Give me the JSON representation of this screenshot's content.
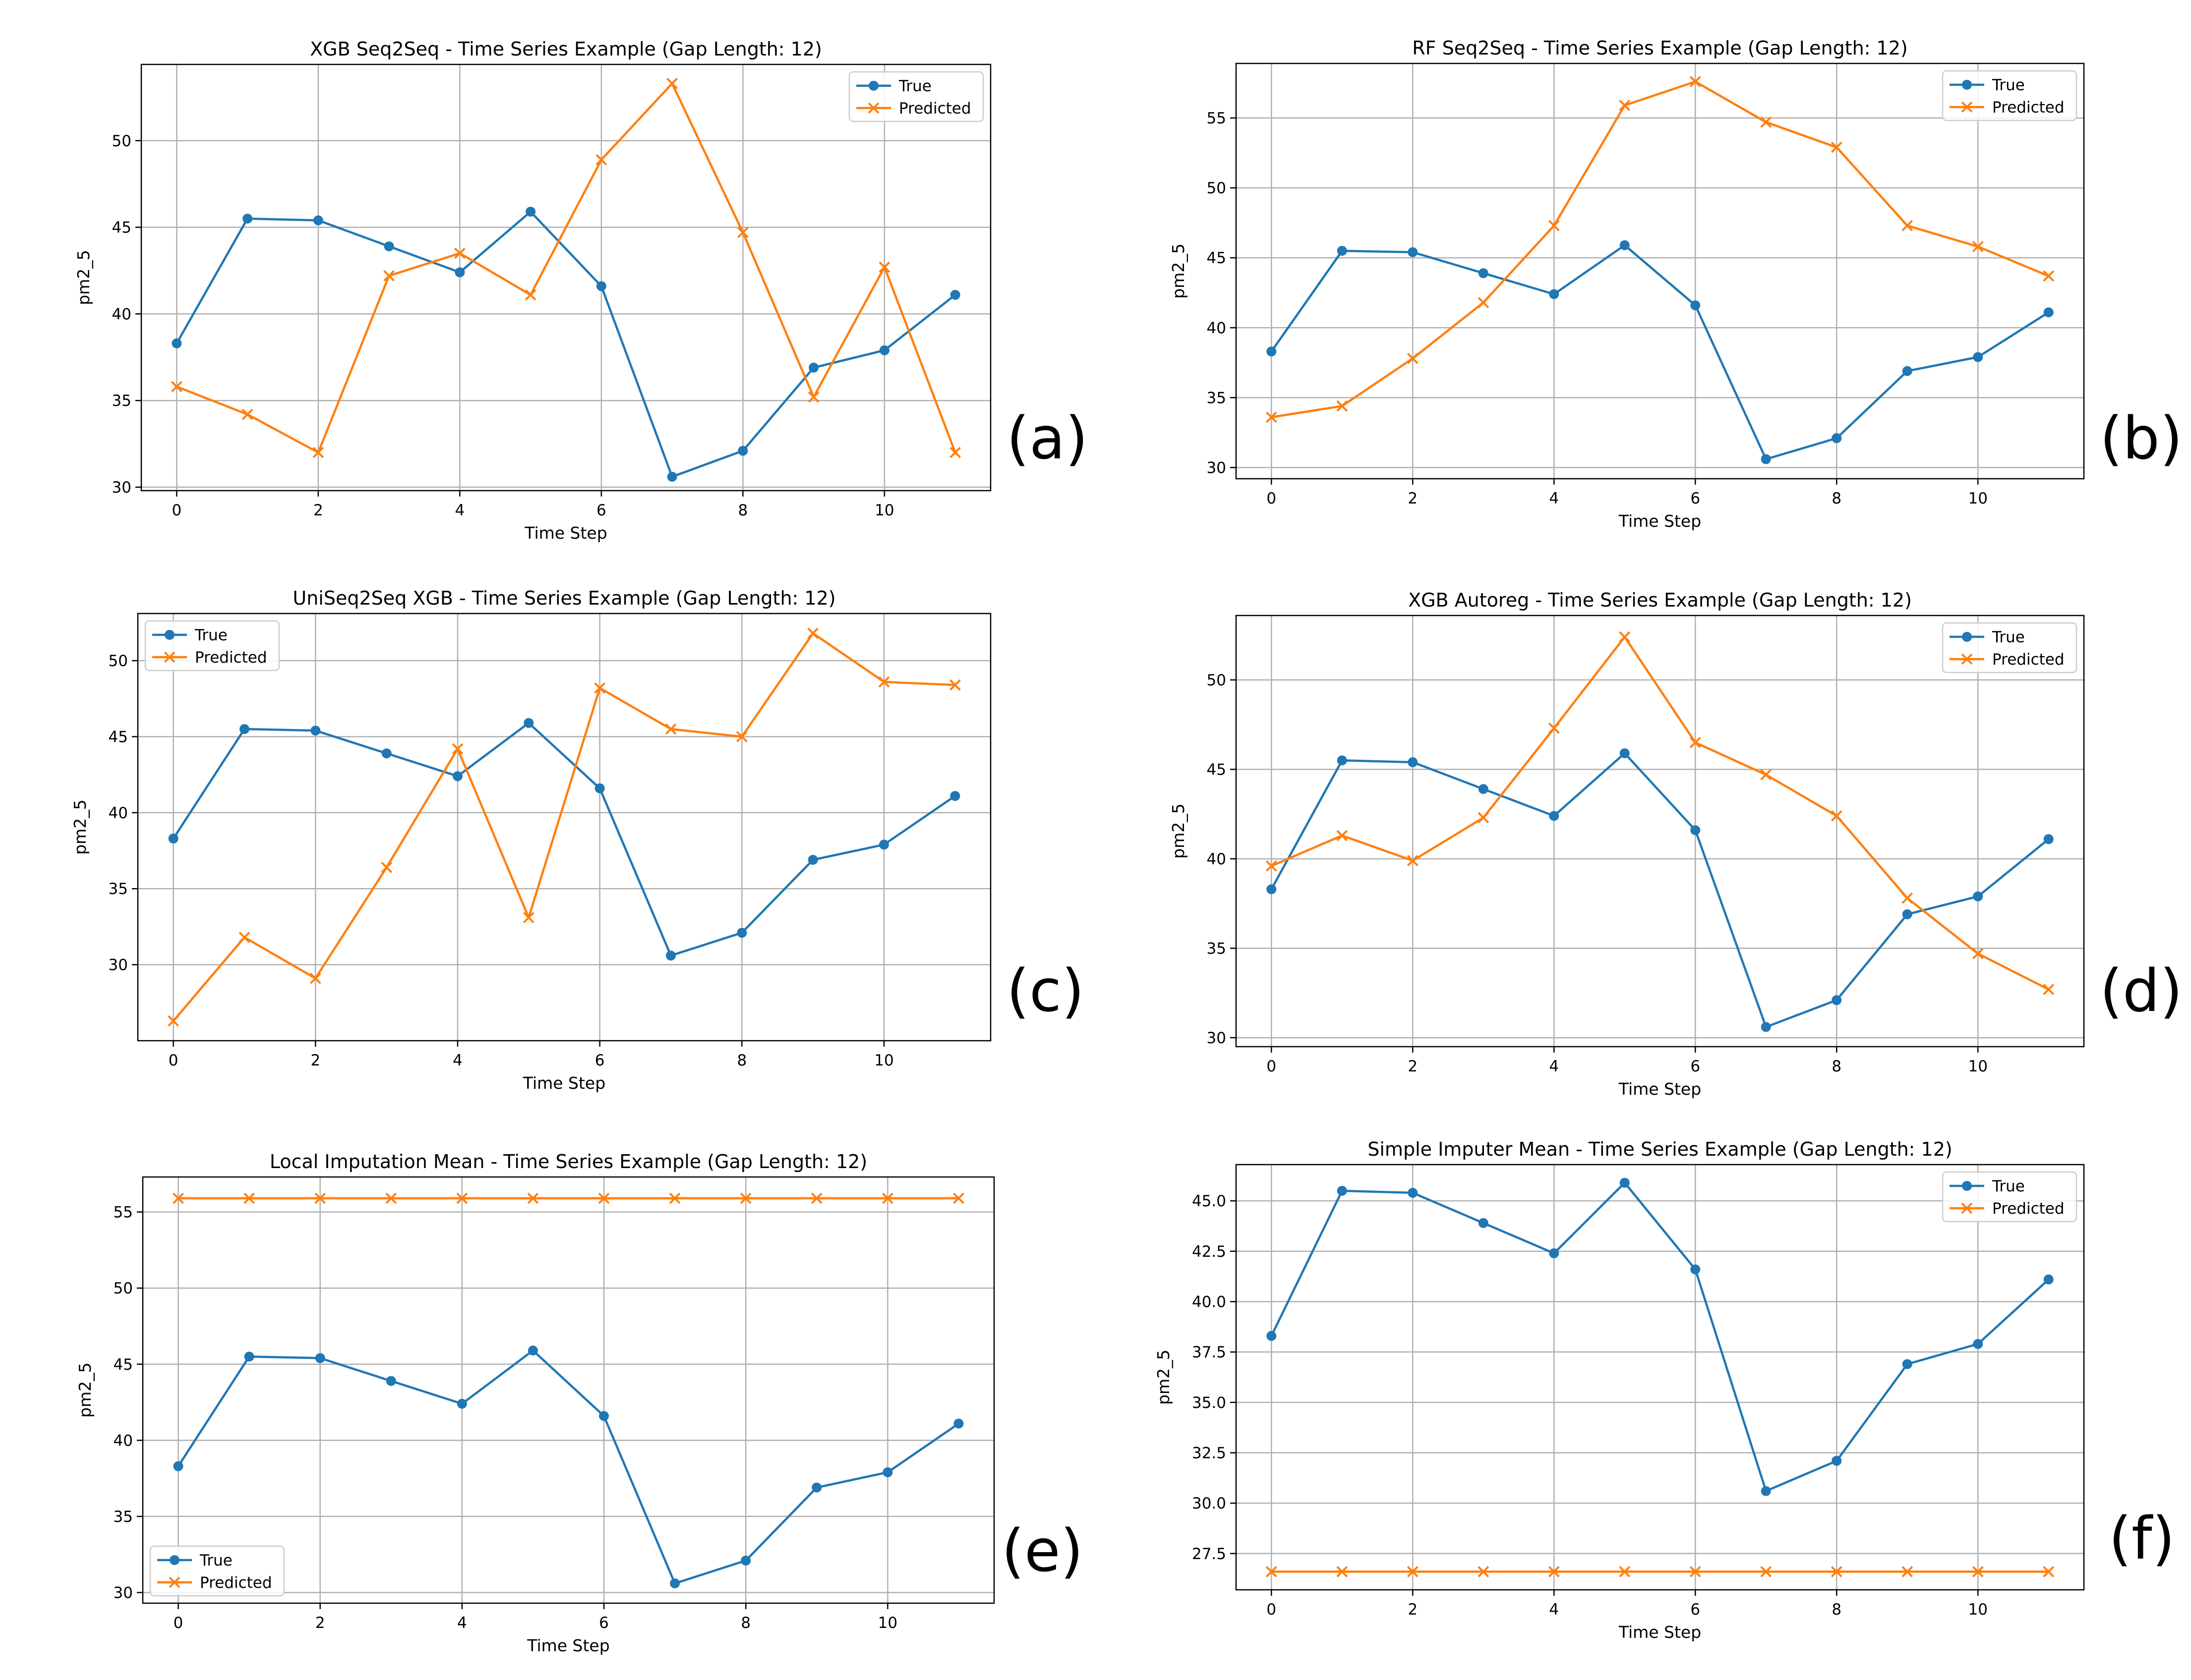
{
  "colors": {
    "true": "#1f77b4",
    "predicted": "#ff7f0e",
    "grid": "#b0b0b0",
    "frame": "#000000",
    "legend_border": "#cccccc"
  },
  "legend_labels": [
    "True",
    "Predicted"
  ],
  "chart_data": [
    {
      "panel": "(a)",
      "type": "line",
      "title": "XGB Seq2Seq - Time Series Example (Gap Length: 12)",
      "xlabel": "Time Step",
      "ylabel": "pm2_5",
      "xlim": [
        -0.5,
        11.5
      ],
      "ylim": [
        29.8,
        54.4
      ],
      "xticks": [
        0,
        2,
        4,
        6,
        8,
        10
      ],
      "yticks": [
        30,
        35,
        40,
        45,
        50
      ],
      "grid": true,
      "legend_placement": "upper right",
      "x": [
        0,
        1,
        2,
        3,
        4,
        5,
        6,
        7,
        8,
        9,
        10,
        11
      ],
      "series": [
        {
          "name": "True",
          "marker": "circle",
          "values": [
            38.3,
            45.5,
            45.4,
            43.9,
            42.4,
            45.9,
            41.6,
            30.6,
            32.1,
            36.9,
            37.9,
            41.1
          ]
        },
        {
          "name": "Predicted",
          "marker": "x",
          "values": [
            35.8,
            34.2,
            32.0,
            42.2,
            43.5,
            41.1,
            48.9,
            53.3,
            44.7,
            35.2,
            42.7,
            32.0
          ]
        }
      ]
    },
    {
      "panel": "(b)",
      "type": "line",
      "title": "RF Seq2Seq - Time Series Example (Gap Length: 12)",
      "xlabel": "Time Step",
      "ylabel": "pm2_5",
      "xlim": [
        -0.5,
        11.5
      ],
      "ylim": [
        29.2,
        58.9
      ],
      "xticks": [
        0,
        2,
        4,
        6,
        8,
        10
      ],
      "yticks": [
        30,
        35,
        40,
        45,
        50,
        55
      ],
      "grid": true,
      "legend_placement": "upper right",
      "x": [
        0,
        1,
        2,
        3,
        4,
        5,
        6,
        7,
        8,
        9,
        10,
        11
      ],
      "series": [
        {
          "name": "True",
          "marker": "circle",
          "values": [
            38.3,
            45.5,
            45.4,
            43.9,
            42.4,
            45.9,
            41.6,
            30.6,
            32.1,
            36.9,
            37.9,
            41.1
          ]
        },
        {
          "name": "Predicted",
          "marker": "x",
          "values": [
            33.6,
            34.4,
            37.8,
            41.8,
            47.3,
            55.9,
            57.6,
            54.7,
            52.9,
            47.3,
            45.8,
            43.7
          ]
        }
      ]
    },
    {
      "panel": "(c)",
      "type": "line",
      "title": "UniSeq2Seq XGB - Time Series Example (Gap Length: 12)",
      "xlabel": "Time Step",
      "ylabel": "pm2_5",
      "xlim": [
        -0.5,
        11.5
      ],
      "ylim": [
        25.0,
        53.1
      ],
      "xticks": [
        0,
        2,
        4,
        6,
        8,
        10
      ],
      "yticks": [
        30,
        35,
        40,
        45,
        50
      ],
      "grid": true,
      "legend_placement": "upper left",
      "x": [
        0,
        1,
        2,
        3,
        4,
        5,
        6,
        7,
        8,
        9,
        10,
        11
      ],
      "series": [
        {
          "name": "True",
          "marker": "circle",
          "values": [
            38.3,
            45.5,
            45.4,
            43.9,
            42.4,
            45.9,
            41.6,
            30.6,
            32.1,
            36.9,
            37.9,
            41.1
          ]
        },
        {
          "name": "Predicted",
          "marker": "x",
          "values": [
            26.3,
            31.8,
            29.1,
            36.4,
            44.2,
            33.1,
            48.2,
            45.5,
            45.0,
            51.8,
            48.6,
            48.4
          ]
        }
      ]
    },
    {
      "panel": "(d)",
      "type": "line",
      "title": "XGB Autoreg - Time Series Example (Gap Length: 12)",
      "xlabel": "Time Step",
      "ylabel": "pm2_5",
      "xlim": [
        -0.5,
        11.5
      ],
      "ylim": [
        29.5,
        53.6
      ],
      "xticks": [
        0,
        2,
        4,
        6,
        8,
        10
      ],
      "yticks": [
        30,
        35,
        40,
        45,
        50
      ],
      "grid": true,
      "legend_placement": "upper right",
      "x": [
        0,
        1,
        2,
        3,
        4,
        5,
        6,
        7,
        8,
        9,
        10,
        11
      ],
      "series": [
        {
          "name": "True",
          "marker": "circle",
          "values": [
            38.3,
            45.5,
            45.4,
            43.9,
            42.4,
            45.9,
            41.6,
            30.6,
            32.1,
            36.9,
            37.9,
            41.1
          ]
        },
        {
          "name": "Predicted",
          "marker": "x",
          "values": [
            39.6,
            41.3,
            39.9,
            42.3,
            47.3,
            52.4,
            46.5,
            44.7,
            42.4,
            37.8,
            34.7,
            32.7
          ]
        }
      ]
    },
    {
      "panel": "(e)",
      "type": "line",
      "title": "Local Imputation Mean - Time Series Example (Gap Length: 12)",
      "xlabel": "Time Step",
      "ylabel": "pm2_5",
      "xlim": [
        -0.5,
        11.5
      ],
      "ylim": [
        29.3,
        57.3
      ],
      "xticks": [
        0,
        2,
        4,
        6,
        8,
        10
      ],
      "yticks": [
        30,
        35,
        40,
        45,
        50,
        55
      ],
      "grid": true,
      "legend_placement": "lower left",
      "x": [
        0,
        1,
        2,
        3,
        4,
        5,
        6,
        7,
        8,
        9,
        10,
        11
      ],
      "series": [
        {
          "name": "True",
          "marker": "circle",
          "values": [
            38.3,
            45.5,
            45.4,
            43.9,
            42.4,
            45.9,
            41.6,
            30.6,
            32.1,
            36.9,
            37.9,
            41.1
          ]
        },
        {
          "name": "Predicted",
          "marker": "x",
          "values": [
            55.9,
            55.9,
            55.9,
            55.9,
            55.9,
            55.9,
            55.9,
            55.9,
            55.9,
            55.9,
            55.9,
            55.9
          ]
        }
      ]
    },
    {
      "panel": "(f)",
      "type": "line",
      "title": "Simple Imputer Mean - Time Series Example (Gap Length: 12)",
      "xlabel": "Time Step",
      "ylabel": "pm2_5",
      "xlim": [
        -0.5,
        11.5
      ],
      "ylim": [
        25.7,
        46.8
      ],
      "xticks": [
        0,
        2,
        4,
        6,
        8,
        10
      ],
      "yticks": [
        27.5,
        30.0,
        32.5,
        35.0,
        37.5,
        40.0,
        42.5,
        45.0
      ],
      "ytick_labels": [
        "27.5",
        "30.0",
        "32.5",
        "35.0",
        "37.5",
        "40.0",
        "42.5",
        "45.0"
      ],
      "grid": true,
      "legend_placement": "upper right",
      "x": [
        0,
        1,
        2,
        3,
        4,
        5,
        6,
        7,
        8,
        9,
        10,
        11
      ],
      "series": [
        {
          "name": "True",
          "marker": "circle",
          "values": [
            38.3,
            45.5,
            45.4,
            43.9,
            42.4,
            45.9,
            41.6,
            30.6,
            32.1,
            36.9,
            37.9,
            41.1
          ]
        },
        {
          "name": "Predicted",
          "marker": "x",
          "values": [
            26.6,
            26.6,
            26.6,
            26.6,
            26.6,
            26.6,
            26.6,
            26.6,
            26.6,
            26.6,
            26.6,
            26.6
          ]
        }
      ]
    }
  ]
}
